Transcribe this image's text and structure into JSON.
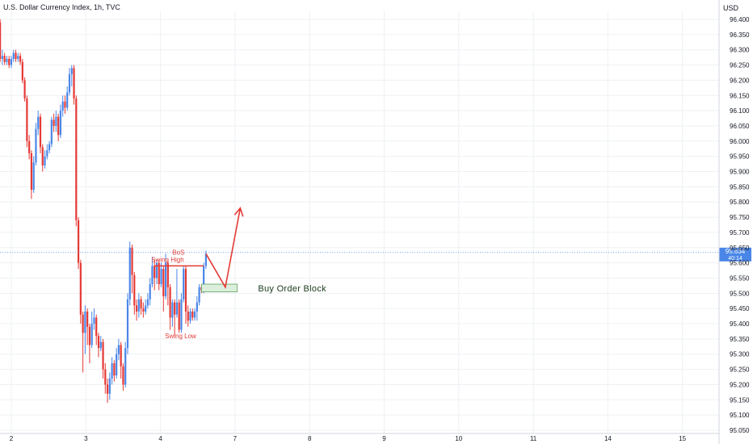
{
  "header": {
    "symbol_title": "U.S. Dollar Currency Index, 1h, TVC",
    "currency": "USD"
  },
  "colors": {
    "up": "#4a86e8",
    "down": "#e53935",
    "grid": "#eef0f3",
    "axis_text": "#131722",
    "price_tag_bg": "#4a86e8",
    "order_block_fill": "#dcefdc",
    "order_block_border": "#5aa15a",
    "annotation_red": "#e53935"
  },
  "chart_data": {
    "type": "candlestick",
    "title": "U.S. Dollar Currency Index, 1h, TVC",
    "ylabel": "USD",
    "grid": true,
    "x_ticks": [
      {
        "label": "2",
        "day": 0
      },
      {
        "label": "3",
        "day": 1
      },
      {
        "label": "4",
        "day": 2
      },
      {
        "label": "7",
        "day": 3
      },
      {
        "label": "8",
        "day": 4
      },
      {
        "label": "9",
        "day": 5
      },
      {
        "label": "10",
        "day": 6
      },
      {
        "label": "11",
        "day": 7
      },
      {
        "label": "14",
        "day": 8
      },
      {
        "label": "15",
        "day": 9
      }
    ],
    "y_ticks": [
      "96.400",
      "96.350",
      "96.300",
      "96.250",
      "96.200",
      "96.150",
      "96.100",
      "96.050",
      "96.000",
      "95.950",
      "95.900",
      "95.850",
      "95.800",
      "95.750",
      "95.700",
      "95.650",
      "95.600",
      "95.550",
      "95.500",
      "95.450",
      "95.400",
      "95.350",
      "95.300",
      "95.250",
      "95.200",
      "95.150",
      "95.100",
      "95.050"
    ],
    "ylim": [
      95.05,
      96.4
    ],
    "xlim": [
      -0.15,
      9.25
    ],
    "last_price": {
      "value": "95.634",
      "countdown": "40:14"
    },
    "candles": [
      [
        -0.15,
        96.39,
        96.27,
        96.4,
        96.26
      ],
      [
        -0.12,
        96.27,
        96.28,
        96.3,
        96.25
      ],
      [
        -0.09,
        96.28,
        96.26,
        96.29,
        96.25
      ],
      [
        -0.06,
        96.26,
        96.27,
        96.28,
        96.25
      ],
      [
        -0.03,
        96.27,
        96.25,
        96.28,
        96.24
      ],
      [
        0.0,
        96.25,
        96.27,
        96.28,
        96.24
      ],
      [
        0.03,
        96.27,
        96.29,
        96.3,
        96.26
      ],
      [
        0.06,
        96.29,
        96.27,
        96.3,
        96.26
      ],
      [
        0.09,
        96.27,
        96.28,
        96.29,
        96.26
      ],
      [
        0.12,
        96.28,
        96.26,
        96.29,
        96.25
      ],
      [
        0.15,
        96.26,
        96.2,
        96.27,
        96.19
      ],
      [
        0.18,
        96.2,
        96.14,
        96.21,
        96.13
      ],
      [
        0.21,
        96.14,
        96.0,
        96.15,
        95.98
      ],
      [
        0.24,
        96.0,
        95.96,
        96.02,
        95.94
      ],
      [
        0.27,
        95.96,
        95.84,
        95.97,
        95.81
      ],
      [
        0.3,
        95.84,
        95.93,
        95.95,
        95.83
      ],
      [
        0.33,
        95.93,
        96.04,
        96.06,
        95.92
      ],
      [
        0.36,
        96.04,
        96.08,
        96.1,
        96.02
      ],
      [
        0.39,
        96.08,
        95.98,
        96.09,
        95.96
      ],
      [
        0.42,
        95.98,
        95.92,
        95.99,
        95.9
      ],
      [
        0.45,
        95.92,
        95.95,
        95.97,
        95.91
      ],
      [
        0.48,
        95.95,
        95.97,
        95.99,
        95.94
      ],
      [
        0.51,
        95.97,
        95.99,
        96.0,
        95.96
      ],
      [
        0.54,
        95.99,
        96.07,
        96.08,
        95.98
      ],
      [
        0.57,
        96.07,
        96.05,
        96.09,
        96.03
      ],
      [
        0.6,
        96.05,
        96.08,
        96.1,
        96.03
      ],
      [
        0.63,
        96.08,
        96.02,
        96.09,
        96.0
      ],
      [
        0.66,
        96.02,
        96.1,
        96.12,
        96.01
      ],
      [
        0.69,
        96.1,
        96.13,
        96.15,
        96.08
      ],
      [
        0.72,
        96.13,
        96.11,
        96.15,
        96.09
      ],
      [
        0.75,
        96.11,
        96.16,
        96.18,
        96.1
      ],
      [
        0.78,
        96.16,
        96.22,
        96.24,
        96.15
      ],
      [
        0.81,
        96.22,
        96.24,
        96.25,
        96.18
      ],
      [
        0.84,
        96.24,
        96.14,
        96.25,
        96.12
      ],
      [
        0.87,
        96.14,
        95.74,
        96.15,
        95.72
      ],
      [
        0.9,
        95.74,
        95.6,
        95.75,
        95.58
      ],
      [
        0.93,
        95.6,
        95.43,
        95.61,
        95.4
      ],
      [
        0.96,
        95.43,
        95.37,
        95.44,
        95.24
      ],
      [
        0.99,
        95.37,
        95.44,
        95.46,
        95.3
      ],
      [
        1.02,
        95.44,
        95.39,
        95.45,
        95.33
      ],
      [
        1.05,
        95.39,
        95.33,
        95.4,
        95.27
      ],
      [
        1.08,
        95.33,
        95.4,
        95.44,
        95.32
      ],
      [
        1.11,
        95.4,
        95.42,
        95.45,
        95.38
      ],
      [
        1.14,
        95.42,
        95.36,
        95.43,
        95.33
      ],
      [
        1.17,
        95.36,
        95.32,
        95.37,
        95.29
      ],
      [
        1.2,
        95.32,
        95.34,
        95.36,
        95.31
      ],
      [
        1.23,
        95.34,
        95.25,
        95.35,
        95.22
      ],
      [
        1.26,
        95.25,
        95.2,
        95.27,
        95.17
      ],
      [
        1.29,
        95.2,
        95.17,
        95.22,
        95.14
      ],
      [
        1.32,
        95.17,
        95.22,
        95.24,
        95.15
      ],
      [
        1.35,
        95.22,
        95.27,
        95.29,
        95.2
      ],
      [
        1.38,
        95.27,
        95.23,
        95.28,
        95.21
      ],
      [
        1.41,
        95.23,
        95.3,
        95.32,
        95.22
      ],
      [
        1.44,
        95.3,
        95.33,
        95.35,
        95.28
      ],
      [
        1.47,
        95.33,
        95.26,
        95.34,
        95.22
      ],
      [
        1.5,
        95.26,
        95.2,
        95.27,
        95.18
      ],
      [
        1.53,
        95.2,
        95.32,
        95.34,
        95.19
      ],
      [
        1.56,
        95.32,
        95.48,
        95.5,
        95.3
      ],
      [
        1.59,
        95.48,
        95.65,
        95.67,
        95.46
      ],
      [
        1.62,
        95.65,
        95.56,
        95.66,
        95.5
      ],
      [
        1.65,
        95.56,
        95.46,
        95.57,
        95.43
      ],
      [
        1.68,
        95.46,
        95.44,
        95.48,
        95.41
      ],
      [
        1.71,
        95.44,
        95.48,
        95.5,
        95.42
      ],
      [
        1.74,
        95.48,
        95.45,
        95.49,
        95.43
      ],
      [
        1.77,
        95.45,
        95.44,
        95.47,
        95.42
      ],
      [
        1.8,
        95.44,
        95.46,
        95.48,
        95.43
      ],
      [
        1.83,
        95.46,
        95.48,
        95.5,
        95.45
      ],
      [
        1.86,
        95.48,
        95.53,
        95.55,
        95.46
      ],
      [
        1.89,
        95.53,
        95.59,
        95.62,
        95.52
      ],
      [
        1.92,
        95.59,
        95.55,
        95.61,
        95.51
      ],
      [
        1.95,
        95.55,
        95.6,
        95.61,
        95.53
      ],
      [
        1.98,
        95.6,
        95.53,
        95.61,
        95.51
      ],
      [
        2.01,
        95.53,
        95.58,
        95.6,
        95.52
      ],
      [
        2.04,
        95.58,
        95.49,
        95.59,
        95.44
      ],
      [
        2.07,
        95.49,
        95.6,
        95.63,
        95.48
      ],
      [
        2.1,
        95.6,
        95.52,
        95.61,
        95.46
      ],
      [
        2.13,
        95.52,
        95.42,
        95.53,
        95.38
      ],
      [
        2.16,
        95.42,
        95.47,
        95.48,
        95.39
      ],
      [
        2.19,
        95.47,
        95.43,
        95.48,
        95.36
      ],
      [
        2.22,
        95.43,
        95.47,
        95.58,
        95.42
      ],
      [
        2.25,
        95.47,
        95.38,
        95.48,
        95.37
      ],
      [
        2.28,
        95.38,
        95.48,
        95.5,
        95.37
      ],
      [
        2.31,
        95.48,
        95.58,
        95.59,
        95.47
      ],
      [
        2.34,
        95.58,
        95.44,
        95.59,
        95.4
      ],
      [
        2.37,
        95.44,
        95.41,
        95.46,
        95.39
      ],
      [
        2.4,
        95.41,
        95.44,
        95.45,
        95.4
      ],
      [
        2.43,
        95.44,
        95.42,
        95.45,
        95.41
      ],
      [
        2.46,
        95.42,
        95.44,
        95.45,
        95.41
      ],
      [
        2.49,
        95.44,
        95.47,
        95.49,
        95.41
      ],
      [
        2.52,
        95.47,
        95.52,
        95.53,
        95.46
      ],
      [
        2.55,
        95.52,
        95.51,
        95.53,
        95.5
      ],
      [
        2.58,
        95.51,
        95.59,
        95.6,
        95.5
      ],
      [
        2.61,
        95.59,
        95.63,
        95.64,
        95.58
      ]
    ],
    "annotations": {
      "bos": {
        "label": "BoS"
      },
      "swing_high": {
        "label": "Swing High",
        "x0": 1.92,
        "x1": 2.58,
        "y": 95.59
      },
      "swing_low": {
        "label": "Swing Low"
      },
      "order_block": {
        "label": "Buy Order Block",
        "x0": 2.55,
        "x1": 3.03,
        "y0": 95.505,
        "y1": 95.53
      },
      "projection_path": [
        [
          2.61,
          95.63
        ],
        [
          2.87,
          95.52
        ],
        [
          3.07,
          95.78
        ]
      ]
    }
  }
}
